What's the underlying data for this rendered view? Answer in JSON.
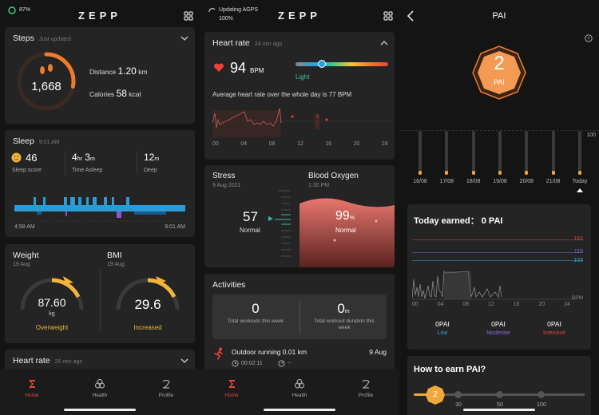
{
  "app": {
    "logo": "ZEPP"
  },
  "s1": {
    "status": {
      "battery": "87%"
    },
    "steps": {
      "title": "Steps",
      "sub": "Just updated",
      "value": "1,668",
      "distance_label": "Distance",
      "distance_value": "1.20",
      "distance_unit": "km",
      "calories_label": "Calories",
      "calories_value": "58",
      "calories_unit": "kcal",
      "ring_progress": 0.28
    },
    "sleep": {
      "title": "Sleep",
      "time": "9:01 AM",
      "score": "46",
      "score_label": "Sleep score",
      "asleep_h": "4",
      "asleep_h_unit": "hr",
      "asleep_m": "3",
      "asleep_m_unit": "m",
      "asleep_label": "Time Asleep",
      "deep": "12",
      "deep_unit": "m",
      "deep_label": "Deep",
      "start": "4:58 AM",
      "end": "9:01 AM"
    },
    "weight": {
      "title": "Weight",
      "date": "19 Aug",
      "value": "87.60",
      "unit": "kg",
      "status": "Overweight"
    },
    "bmi": {
      "title": "BMI",
      "date": "19 Aug",
      "value": "29.6",
      "status": "Increased"
    },
    "heartrate": {
      "title": "Heart rate",
      "sub": "26 min ago"
    }
  },
  "s2": {
    "status": {
      "line1": "Updating AGPS",
      "line2": "100%"
    },
    "hr": {
      "title": "Heart rate",
      "sub": "24 min ago",
      "value": "94",
      "unit": "BPM",
      "zone": "Light",
      "avg_text": "Average heart rate over the whole day is 77 BPM",
      "x_ticks": [
        "00",
        "04",
        "08",
        "12",
        "16",
        "20",
        "24"
      ]
    },
    "stress": {
      "title": "Stress",
      "date": "9 Aug 2021",
      "value": "57",
      "label": "Normal"
    },
    "oxygen": {
      "title": "Blood Oxygen",
      "time": "1:30 PM",
      "value": "99",
      "unit": "%",
      "label": "Normal"
    },
    "activities": {
      "title": "Activities",
      "workouts": "0",
      "workouts_label": "Total workouts this week",
      "duration": "0",
      "duration_unit": "m",
      "duration_label": "Total workout duration this week",
      "item_name": "Outdoor running 0.01 km",
      "item_date": "9 Aug",
      "item_time": "00:02:11",
      "item_pace": "--"
    }
  },
  "s3": {
    "title": "PAI",
    "pai_value": "2",
    "pai_label": "PAI",
    "bars_max": "100",
    "days": [
      "16/08",
      "17/08",
      "18/08",
      "19/08",
      "20/08",
      "21/08",
      "Today"
    ],
    "today": {
      "title": "Today earned： 0 PAI",
      "lines": [
        "153",
        "115",
        "103"
      ],
      "line_colors": [
        "#e0443a",
        "#8a66e0",
        "#3aa0e0"
      ],
      "x_ticks": [
        "00",
        "04",
        "08",
        "12",
        "16",
        "20",
        "24"
      ],
      "bpm": "BPM",
      "low_val": "0PAI",
      "low": "Low",
      "mod_val": "0PAI",
      "mod": "Moderate",
      "int_val": "0PAI",
      "int": "Intensive"
    },
    "earn": {
      "title": "How to earn PAI?",
      "marker": "2",
      "ticks": [
        "30",
        "50",
        "100"
      ]
    }
  },
  "tabs": {
    "home": "Home",
    "health": "Health",
    "profile": "Profile"
  }
}
